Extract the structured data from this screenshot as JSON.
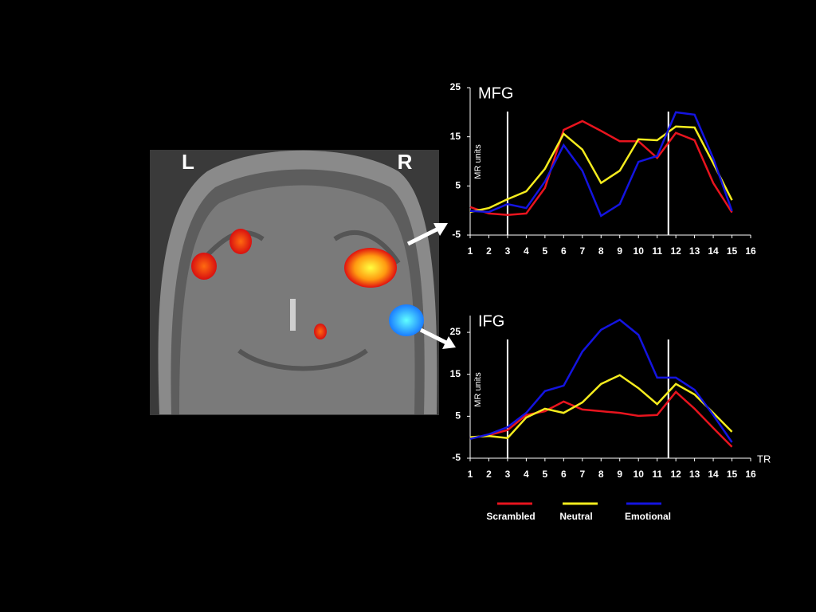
{
  "image_labels": {
    "left": "L",
    "right": "R"
  },
  "chart_data": [
    {
      "type": "line",
      "title": "MFG",
      "y_label": "MR units",
      "x": [
        1,
        2,
        3,
        4,
        5,
        6,
        7,
        8,
        9,
        10,
        11,
        12,
        13,
        14,
        15
      ],
      "xlim": [
        1,
        16
      ],
      "xticks": [
        1,
        2,
        3,
        4,
        5,
        6,
        7,
        8,
        9,
        10,
        11,
        12,
        13,
        14,
        15,
        16
      ],
      "ylim": [
        -5,
        25
      ],
      "yticks": [
        -5,
        5,
        15,
        25
      ],
      "vlines": [
        3,
        11.6
      ],
      "series": [
        {
          "name": "Scrambled",
          "color": "#e8141e",
          "values": [
            0.7,
            -0.6,
            -0.9,
            -0.6,
            4.6,
            16.4,
            18.2,
            16.2,
            14.1,
            14.1,
            10.7,
            15.8,
            14.3,
            5.6,
            -0.4
          ]
        },
        {
          "name": "Neutral",
          "color": "#f5ec1e",
          "values": [
            -0.3,
            0.5,
            2.3,
            3.9,
            8.5,
            15.6,
            12.4,
            5.6,
            8.1,
            14.5,
            14.3,
            17.1,
            16.9,
            9.6,
            2.1
          ]
        },
        {
          "name": "Emotional",
          "color": "#1414e0",
          "values": [
            -0.1,
            -0.3,
            1.3,
            0.5,
            5.9,
            13.3,
            8.1,
            -1.1,
            1.3,
            9.9,
            11.1,
            20,
            19.5,
            10.6,
            -0.1
          ]
        }
      ]
    },
    {
      "type": "line",
      "title": "IFG",
      "y_label": "MR units",
      "x_label": "TR",
      "x": [
        1,
        2,
        3,
        4,
        5,
        6,
        7,
        8,
        9,
        10,
        11,
        12,
        13,
        14,
        15
      ],
      "xlim": [
        1,
        16
      ],
      "xticks": [
        1,
        2,
        3,
        4,
        5,
        6,
        7,
        8,
        9,
        10,
        11,
        12,
        13,
        14,
        15,
        16
      ],
      "ylim": [
        -5,
        29
      ],
      "yticks": [
        -5,
        5,
        15,
        25
      ],
      "vlines": [
        3,
        11.6
      ],
      "series": [
        {
          "name": "Scrambled",
          "color": "#e8141e",
          "values": [
            -0.2,
            0.5,
            1.7,
            5.3,
            6.2,
            8.5,
            6.6,
            6.2,
            5.8,
            5.1,
            5.3,
            10.8,
            6.8,
            2.2,
            -2.3
          ]
        },
        {
          "name": "Neutral",
          "color": "#f5ec1e",
          "values": [
            0,
            0.3,
            -0.2,
            4.7,
            6.8,
            5.8,
            8.3,
            12.7,
            14.8,
            11.7,
            7.9,
            12.7,
            10.2,
            5.8,
            1.3
          ]
        },
        {
          "name": "Emotional",
          "color": "#1414e0",
          "values": [
            -0.4,
            0.7,
            2.4,
            5.8,
            11,
            12.3,
            20.4,
            25.6,
            28,
            24.4,
            14.2,
            14.2,
            11.3,
            5.3,
            -1.2
          ]
        }
      ]
    }
  ]
}
